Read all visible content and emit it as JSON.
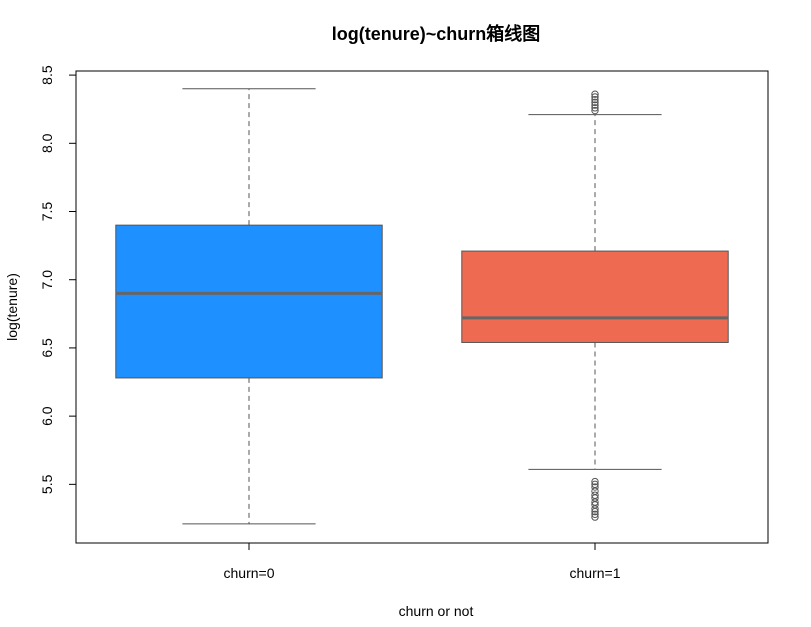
{
  "chart_data": {
    "type": "boxplot",
    "title": "log(tenure)~churn箱线图",
    "xlabel": "churn or not",
    "ylabel": "log(tenure)",
    "ylim": [
      5.07,
      8.53
    ],
    "y_ticks": [
      "5.5",
      "6.0",
      "6.5",
      "7.0",
      "7.5",
      "8.0",
      "8.5"
    ],
    "grid": false,
    "legend": "none",
    "categories": [
      "churn=0",
      "churn=1"
    ],
    "boxes": [
      {
        "category": "churn=0",
        "color": "#1E90FF",
        "whisker_low": 5.21,
        "q1": 6.28,
        "median": 6.9,
        "q3": 7.4,
        "whisker_high": 8.4,
        "outliers": []
      },
      {
        "category": "churn=1",
        "color": "#EE6A50",
        "whisker_low": 5.61,
        "q1": 6.54,
        "median": 6.72,
        "q3": 7.21,
        "whisker_high": 8.21,
        "outliers": [
          5.26,
          5.28,
          5.3,
          5.32,
          5.35,
          5.37,
          5.4,
          5.42,
          5.45,
          5.48,
          5.5,
          5.52,
          8.24,
          8.26,
          8.28,
          8.3,
          8.32,
          8.34,
          8.36
        ]
      }
    ],
    "colors": {
      "median_line": "#666666",
      "box_border": "#555555",
      "whisker": "#555555",
      "axis": "#000000"
    }
  }
}
